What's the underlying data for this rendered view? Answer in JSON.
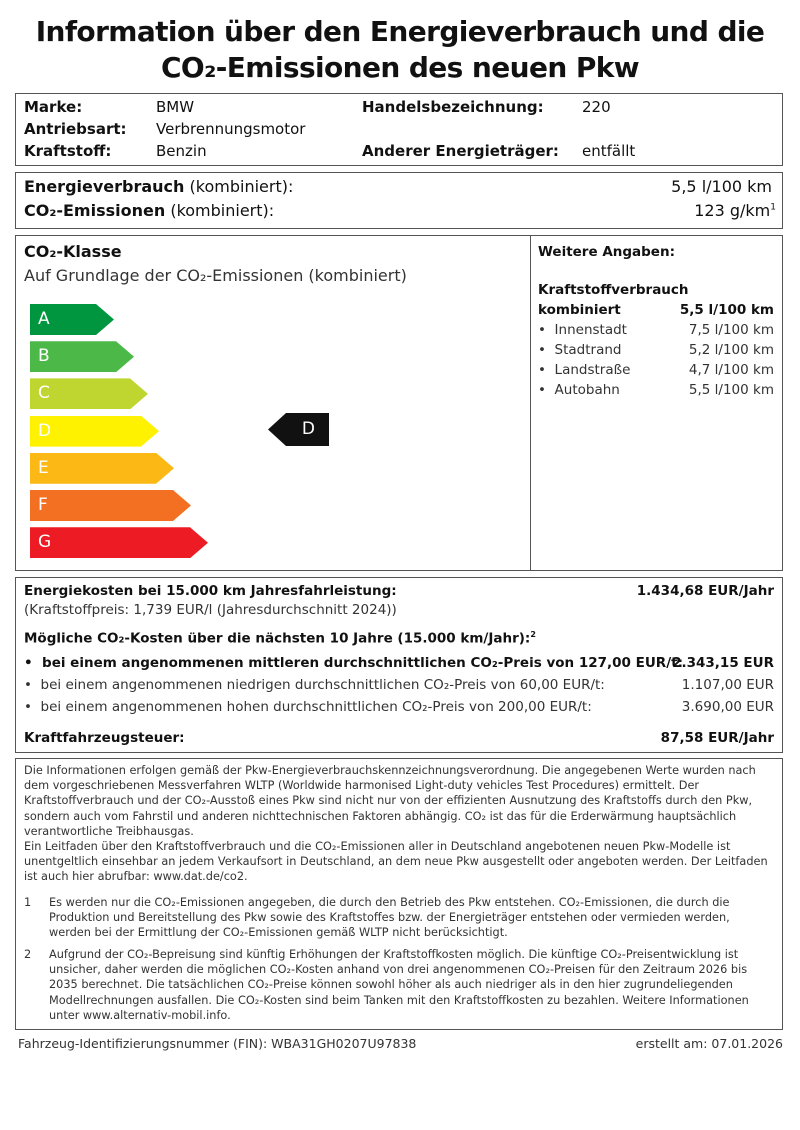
{
  "title": {
    "line1": "Information über den Energieverbrauch und die",
    "line2": "CO₂-Emissionen des neuen Pkw"
  },
  "vehicle": {
    "marke_label": "Marke:",
    "marke": "BMW",
    "antrieb_label": "Antriebsart:",
    "antrieb": "Verbrennungsmotor",
    "kraftstoff_label": "Kraftstoff:",
    "kraftstoff": "Benzin",
    "handel_label": "Handelsbezeichnung:",
    "handel": "220",
    "anderer_label": "Anderer Energieträger:",
    "anderer": "entfällt"
  },
  "consumption": {
    "energy_label": "Energieverbrauch",
    "energy_suffix": " (kombiniert):",
    "energy_value": "5,5 l/100 km",
    "co2_label": "CO₂-Emissionen",
    "co2_suffix": " (kombiniert):",
    "co2_value": "123 g/km",
    "co2_sup": "1"
  },
  "co2_class": {
    "title": "CO₂-Klasse",
    "subtitle": "Auf Grundlage der CO₂-Emissionen (kombiniert)",
    "classes": [
      "A",
      "B",
      "C",
      "D",
      "E",
      "F",
      "G"
    ],
    "colors": [
      "#00963f",
      "#4cb848",
      "#bfd630",
      "#fff200",
      "#fcb814",
      "#f36f21",
      "#ed1c24"
    ],
    "current": "D"
  },
  "further": {
    "title": "Weitere Angaben:",
    "heading": "Kraftstoffverbrauch",
    "combined_label": "kombiniert",
    "combined_value": "5,5 l/100 km",
    "items": [
      {
        "label": "Innenstadt",
        "value": "7,5 l/100 km"
      },
      {
        "label": "Stadtrand",
        "value": "5,2 l/100 km"
      },
      {
        "label": "Landstraße",
        "value": "4,7 l/100 km"
      },
      {
        "label": "Autobahn",
        "value": "5,5 l/100 km"
      }
    ]
  },
  "costs": {
    "energy_label": "Energiekosten bei 15.000 km Jahresfahrleistung:",
    "energy_value": "1.434,68 EUR/Jahr",
    "fuel_price": "(Kraftstoffpreis: 1,739 EUR/l (Jahresdurchschnitt 2024))",
    "co2_heading": "Mögliche CO₂-Kosten über die nächsten 10 Jahre (15.000 km/Jahr):",
    "co2_sup": "2",
    "scenarios": [
      {
        "label": "bei einem angenommenen mittleren durchschnittlichen CO₂-Preis von 127,00 EUR/t:",
        "value": "2.343,15 EUR"
      },
      {
        "label": "bei einem angenommenen niedrigen durchschnittlichen CO₂-Preis von 60,00 EUR/t:",
        "value": "1.107,00 EUR"
      },
      {
        "label": "bei einem angenommenen hohen durchschnittlichen CO₂-Preis von 200,00 EUR/t:",
        "value": "3.690,00 EUR"
      }
    ],
    "tax_label": "Kraftfahrzeugsteuer:",
    "tax_value": "87,58 EUR/Jahr"
  },
  "notes": {
    "intro": "Die Informationen erfolgen gemäß der Pkw-Energieverbrauchskennzeichnungsverordnung. Die angegebenen Werte wurden nach dem vorgeschriebenen Messverfahren WLTP (Worldwide harmonised Light-duty vehicles Test Procedures) ermittelt. Der Kraftstoffverbrauch und der CO₂-Ausstoß eines Pkw sind nicht nur von der effizienten Ausnutzung des Kraftstoffs durch den Pkw, sondern auch vom Fahrstil und anderen nichttechnischen Faktoren abhängig. CO₂ ist das für die Erderwärmung hauptsächlich verantwortliche Treibhausgas.",
    "guide": "Ein Leitfaden über den Kraftstoffverbrauch und die CO₂-Emissionen aller in Deutschland angebotenen neuen Pkw-Modelle ist unentgeltlich einsehbar an jedem Verkaufsort in Deutschland, an dem neue Pkw ausgestellt oder angeboten werden. Der Leitfaden ist auch hier abrufbar: www.dat.de/co2.",
    "fn1_num": "1",
    "fn1": "Es werden nur die CO₂-Emissionen angegeben, die durch den Betrieb des Pkw entstehen. CO₂-Emissionen, die durch die Produktion und Bereitstellung des Pkw sowie des Kraftstoffes bzw. der Energieträger entstehen oder vermieden werden, werden bei der Ermittlung der CO₂-Emissionen gemäß WLTP nicht berücksichtigt.",
    "fn2_num": "2",
    "fn2": "Aufgrund der CO₂-Bepreisung sind künftig Erhöhungen der Kraftstoffkosten möglich. Die künftige CO₂-Preisentwicklung ist unsicher, daher werden die möglichen CO₂-Kosten anhand von drei angenommenen CO₂-Preisen für den Zeitraum 2026 bis 2035 berechnet. Die tatsächlichen CO₂-Preise können sowohl höher als auch niedriger als in den hier zugrundeliegenden Modellrechnungen ausfallen. Die CO₂-Kosten sind beim Tanken mit den Kraftstoffkosten zu bezahlen. Weitere Informationen unter www.alternativ-mobil.info."
  },
  "footer": {
    "fin": "Fahrzeug-Identifizierungsnummer (FIN): WBA31GH0207U97838",
    "created": "erstellt am: 07.01.2026"
  }
}
